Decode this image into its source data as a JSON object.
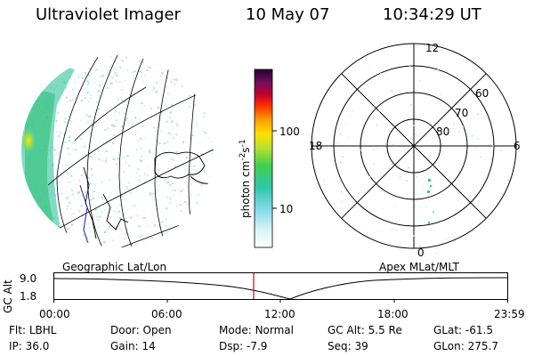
{
  "header": {
    "title": "Ultraviolet Imager",
    "date": "10 May 07",
    "time": "10:34:29 UT"
  },
  "colorbar": {
    "unit_label": "photon cm",
    "unit_sup1": "-2",
    "unit_s": "s",
    "unit_sup2": "-1",
    "tick_high": "100",
    "tick_low": "10"
  },
  "globe": {
    "caption": "Geographic Lat/Lon"
  },
  "polar": {
    "caption": "Apex MLat/MLT",
    "mlt_top": "12",
    "mlt_left": "18",
    "mlt_right": "6",
    "mlt_bottom": "0",
    "lat_60": "60",
    "lat_70": "70",
    "lat_80": "80"
  },
  "altitude_plot": {
    "ylabel": "GC Alt",
    "y_top": "9.0",
    "y_bottom": "1.8",
    "x_ticks": [
      "00:00",
      "06:00",
      "12:00",
      "18:00",
      "23:59"
    ],
    "current_time_fraction": 0.44,
    "accent_color": "#e00000"
  },
  "status": {
    "flt_label": "Flt:",
    "flt_value": "LBHL",
    "door_label": "Door:",
    "door_value": "Open",
    "mode_label": "Mode:",
    "mode_value": "Normal",
    "gcalt_label": "GC Alt:",
    "gcalt_value": "5.5 Re",
    "glat_label": "GLat:",
    "glat_value": "-61.5",
    "ip_label": "IP:",
    "ip_value": "36.0",
    "gain_label": "Gain:",
    "gain_value": "14",
    "dsp_label": "Dsp:",
    "dsp_value": "-7.9",
    "seq_label": "Seq:",
    "seq_value": "39",
    "glon_label": "GLon:",
    "glon_value": "275.7"
  }
}
